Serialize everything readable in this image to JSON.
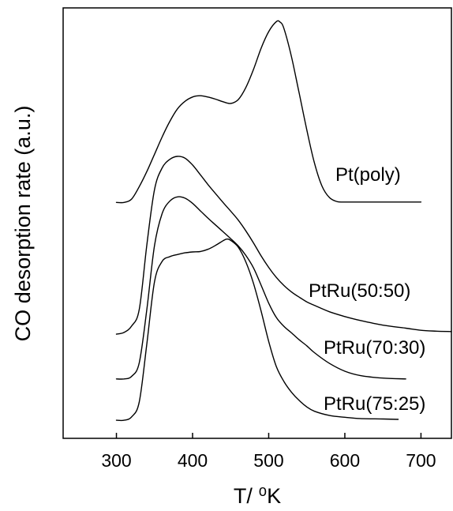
{
  "chart_data": {
    "type": "line",
    "xlabel": "T/ ⁰K",
    "ylabel": "CO desorption rate (a.u.)",
    "xlim": [
      230,
      740
    ],
    "ylim": [
      0,
      100
    ],
    "x_ticks": [
      300,
      400,
      500,
      600,
      700
    ],
    "y_ticks": [],
    "grid": false,
    "legend": "none (series labeled next to curves)",
    "series": [
      {
        "name": "Pt(poly)",
        "x": [
          300,
          310,
          320,
          330,
          340,
          350,
          360,
          370,
          380,
          390,
          400,
          410,
          420,
          430,
          440,
          450,
          460,
          470,
          480,
          490,
          500,
          510,
          515,
          520,
          530,
          540,
          550,
          560,
          570,
          580,
          590,
          600,
          620,
          650,
          680,
          700
        ],
        "y": [
          54.8,
          54.8,
          55.6,
          58.5,
          62,
          66,
          70,
          73.6,
          76.5,
          78.3,
          79.3,
          79.6,
          79.3,
          78.8,
          78.2,
          77.8,
          78.7,
          81.5,
          85.7,
          90.6,
          94.5,
          96.8,
          96.7,
          95.2,
          88.6,
          80.2,
          71.7,
          64,
          58.6,
          55.9,
          55,
          54.9,
          54.9,
          54.9,
          54.9,
          54.9
        ]
      },
      {
        "name": "PtRu(50:50)",
        "x": [
          300,
          310,
          320,
          330,
          340,
          350,
          360,
          370,
          380,
          390,
          400,
          410,
          420,
          430,
          440,
          450,
          460,
          470,
          480,
          490,
          500,
          510,
          520,
          530,
          540,
          550,
          560,
          580,
          600,
          620,
          650,
          680,
          700,
          720,
          740
        ],
        "y": [
          24.2,
          24.6,
          26.1,
          30,
          45,
          57.8,
          62.8,
          64.8,
          65.5,
          65.1,
          63.5,
          61.3,
          59,
          56.9,
          54.8,
          52.8,
          50.7,
          48.2,
          45.4,
          42.4,
          39.7,
          37.4,
          35.5,
          34,
          32.8,
          31.7,
          30.9,
          29.4,
          28.3,
          27.4,
          26.3,
          25.6,
          25.1,
          24.9,
          24.8
        ]
      },
      {
        "name": "PtRu(70:30)",
        "x": [
          300,
          310,
          320,
          330,
          340,
          350,
          360,
          370,
          380,
          390,
          400,
          410,
          420,
          430,
          440,
          450,
          460,
          470,
          480,
          490,
          500,
          510,
          520,
          530,
          540,
          550,
          560,
          580,
          600,
          620,
          650,
          680
        ],
        "y": [
          13.8,
          13.8,
          14.4,
          17.6,
          30,
          44.8,
          52.2,
          55.1,
          56.1,
          55.8,
          54.6,
          52.9,
          51.2,
          49.6,
          48,
          46.4,
          44.7,
          42.5,
          39.6,
          35.6,
          31.4,
          28.1,
          26,
          24.5,
          22.9,
          21.5,
          19.9,
          17.4,
          15.6,
          14.6,
          14,
          13.8
        ]
      },
      {
        "name": "PtRu(75:25)",
        "x": [
          300,
          310,
          320,
          330,
          340,
          350,
          360,
          370,
          380,
          390,
          400,
          410,
          420,
          430,
          440,
          445,
          450,
          460,
          470,
          480,
          490,
          500,
          510,
          520,
          530,
          540,
          550,
          560,
          580,
          600,
          620,
          650,
          670
        ],
        "y": [
          4.2,
          4.2,
          5,
          8.5,
          22,
          36.4,
          41.1,
          42.2,
          42.7,
          43.1,
          43.3,
          43.4,
          43.9,
          44.8,
          45.9,
          46.3,
          46,
          44.4,
          41,
          36,
          29.6,
          22.5,
          16.7,
          13.2,
          10.7,
          8.8,
          7.3,
          6.3,
          5.3,
          4.9,
          4.6,
          4.5,
          4.4
        ]
      }
    ]
  }
}
